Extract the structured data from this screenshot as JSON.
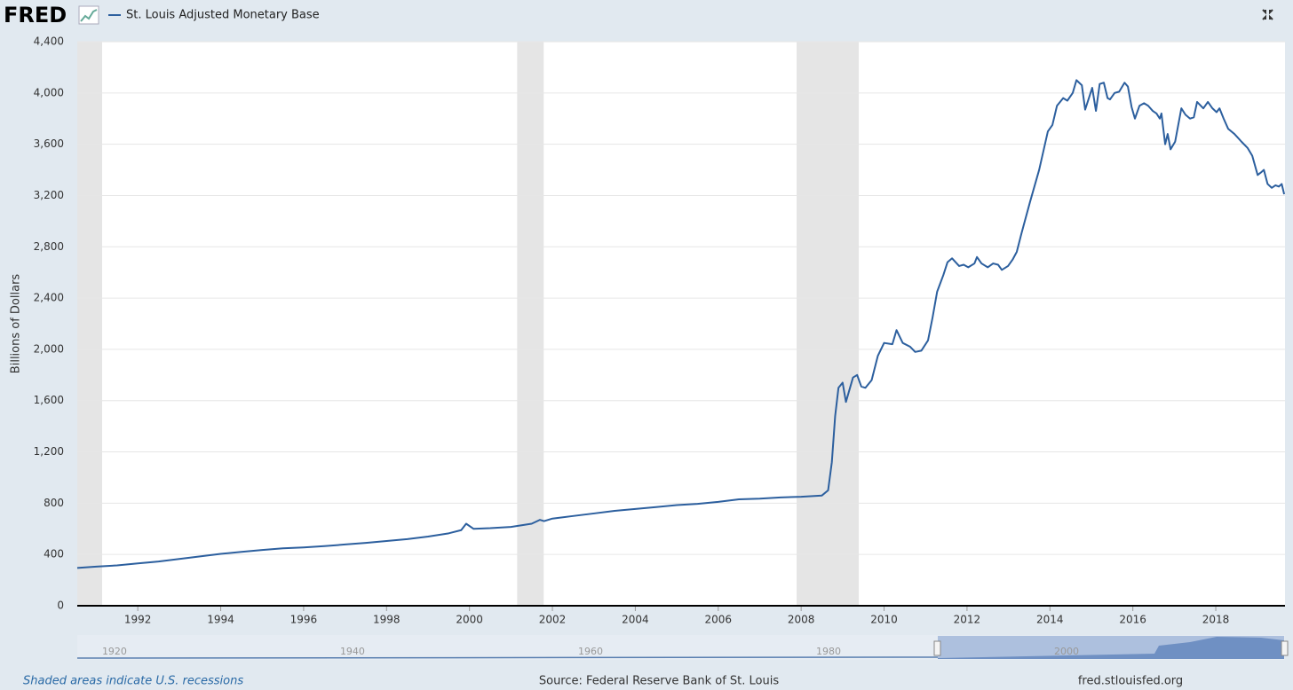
{
  "chart_data": {
    "type": "line",
    "brand": "FRED",
    "y_label": "Billions of Dollars",
    "note": "Shaded areas indicate U.S. recessions",
    "source": "Source: Federal Reserve Bank of St. Louis",
    "url": "fred.stlouisfed.org",
    "xlim": [
      1990.54,
      2019.67
    ],
    "xticks": [
      1992,
      1994,
      1996,
      1998,
      2000,
      2002,
      2004,
      2006,
      2008,
      2010,
      2012,
      2014,
      2016,
      2018
    ],
    "ylim": [
      0,
      4400
    ],
    "yticks": [
      0,
      400,
      800,
      {
        "value": 1200,
        "label": "1,200"
      },
      {
        "value": 1600,
        "label": "1,600"
      },
      {
        "value": 2000,
        "label": "2,000"
      },
      {
        "value": 2400,
        "label": "2,400"
      },
      {
        "value": 2800,
        "label": "2,800"
      },
      {
        "value": 3200,
        "label": "3,200"
      },
      {
        "value": 3600,
        "label": "3,600"
      },
      {
        "value": 4000,
        "label": "4,000"
      },
      {
        "value": 4400,
        "label": "4,400"
      }
    ],
    "grid": true,
    "recessions": [
      [
        1990.54,
        1991.14
      ],
      [
        2001.15,
        2001.79
      ],
      [
        2007.89,
        2009.39
      ]
    ],
    "recession_color": "#e5e5e5",
    "x": [
      1990.54,
      1991.0,
      1991.5,
      1992.0,
      1992.5,
      1993.0,
      1993.5,
      1994.0,
      1994.5,
      1995.0,
      1995.5,
      1996.0,
      1996.5,
      1997.0,
      1997.5,
      1998.0,
      1998.5,
      1999.0,
      1999.5,
      1999.8,
      1999.92,
      2000.1,
      2000.5,
      2001.0,
      2001.5,
      2001.7,
      2001.8,
      2002.0,
      2002.5,
      2003.0,
      2003.5,
      2004.0,
      2004.5,
      2005.0,
      2005.5,
      2006.0,
      2006.5,
      2007.0,
      2007.5,
      2008.0,
      2008.5,
      2008.65,
      2008.74,
      2008.82,
      2008.9,
      2009.0,
      2009.08,
      2009.25,
      2009.35,
      2009.45,
      2009.55,
      2009.7,
      2009.85,
      2010.0,
      2010.2,
      2010.3,
      2010.45,
      2010.63,
      2010.75,
      2010.9,
      2011.06,
      2011.17,
      2011.28,
      2011.43,
      2011.53,
      2011.64,
      2011.81,
      2011.92,
      2012.03,
      2012.18,
      2012.24,
      2012.35,
      2012.5,
      2012.63,
      2012.75,
      2012.84,
      2012.99,
      2013.1,
      2013.2,
      2013.31,
      2013.52,
      2013.74,
      2013.95,
      2014.06,
      2014.17,
      2014.32,
      2014.42,
      2014.55,
      2014.64,
      2014.77,
      2014.85,
      2015.02,
      2015.11,
      2015.2,
      2015.3,
      2015.39,
      2015.45,
      2015.56,
      2015.67,
      2015.8,
      2015.88,
      2015.97,
      2016.05,
      2016.16,
      2016.27,
      2016.37,
      2016.48,
      2016.57,
      2016.65,
      2016.69,
      2016.78,
      2016.84,
      2016.91,
      2017.02,
      2017.17,
      2017.27,
      2017.38,
      2017.47,
      2017.55,
      2017.7,
      2017.81,
      2017.92,
      2018.02,
      2018.09,
      2018.19,
      2018.3,
      2018.45,
      2018.62,
      2018.77,
      2018.88,
      2019.01,
      2019.09,
      2019.16,
      2019.25,
      2019.35,
      2019.44,
      2019.52,
      2019.59,
      2019.65
    ],
    "series": [
      {
        "name": "St. Louis Adjusted Monetary Base",
        "color": "#2c5f9e",
        "values": [
          295,
          305,
          315,
          330,
          345,
          365,
          385,
          405,
          420,
          435,
          448,
          455,
          465,
          478,
          490,
          505,
          520,
          540,
          565,
          590,
          640,
          600,
          605,
          615,
          640,
          670,
          660,
          680,
          700,
          720,
          740,
          755,
          770,
          785,
          795,
          810,
          830,
          835,
          845,
          850,
          860,
          900,
          1120,
          1480,
          1700,
          1740,
          1590,
          1780,
          1800,
          1710,
          1700,
          1760,
          1950,
          2050,
          2040,
          2150,
          2050,
          2020,
          1980,
          1990,
          2070,
          2250,
          2450,
          2580,
          2680,
          2710,
          2650,
          2660,
          2640,
          2670,
          2720,
          2670,
          2640,
          2670,
          2660,
          2620,
          2650,
          2700,
          2760,
          2900,
          3150,
          3400,
          3700,
          3750,
          3900,
          3960,
          3940,
          4000,
          4100,
          4060,
          3870,
          4040,
          3860,
          4070,
          4080,
          3960,
          3950,
          4000,
          4010,
          4080,
          4050,
          3890,
          3800,
          3900,
          3920,
          3900,
          3860,
          3840,
          3800,
          3840,
          3600,
          3680,
          3560,
          3620,
          3880,
          3830,
          3800,
          3810,
          3930,
          3880,
          3930,
          3880,
          3850,
          3880,
          3800,
          3720,
          3680,
          3620,
          3570,
          3510,
          3360,
          3380,
          3400,
          3290,
          3260,
          3280,
          3270,
          3290,
          3210
        ]
      }
    ],
    "navigator": {
      "xlim": [
        1916.87,
        2018.36
      ],
      "xticks": [
        1920,
        1940,
        1960,
        1980,
        2000
      ]
    }
  }
}
